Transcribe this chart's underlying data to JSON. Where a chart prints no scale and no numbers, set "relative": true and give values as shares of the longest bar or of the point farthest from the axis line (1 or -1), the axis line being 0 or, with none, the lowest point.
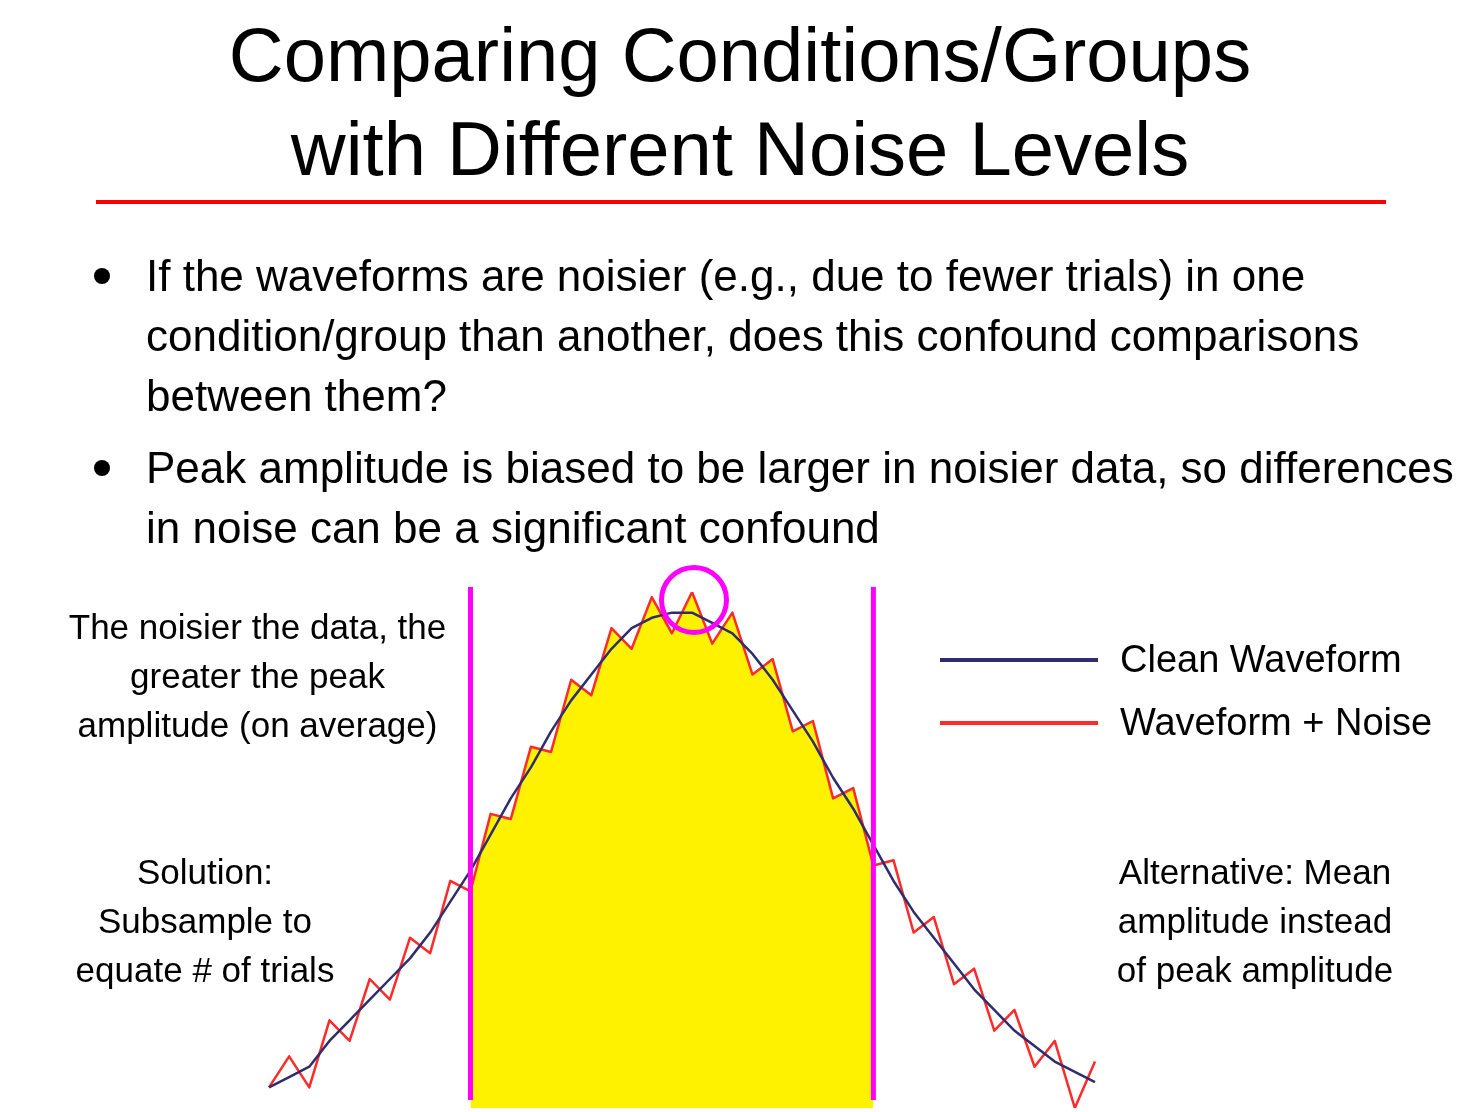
{
  "chart_data": {
    "type": "line",
    "relative": true,
    "title": "Comparing Conditions/Groups with Different Noise Levels",
    "annotations": [
      "If the waveforms are noisier (e.g., due to fewer trials) in one condition/group than another, does this confound comparisons between them?",
      "Peak amplitude is biased to be larger in noisier data, so differences in noise can be a significant confound",
      "The noisier the data, the greater the peak amplitude (on average)",
      "Solution: Subsample to equate # of trials",
      "Alternative: Mean amplitude instead of peak amplitude"
    ],
    "categories": [
      null,
      null,
      null,
      null,
      null,
      null,
      null,
      null,
      null,
      null,
      null,
      null,
      null,
      null,
      null,
      null,
      null,
      null,
      null,
      null,
      null,
      null,
      null,
      null,
      null,
      null,
      null,
      null,
      null,
      null,
      null,
      null,
      null,
      null,
      null,
      null,
      null,
      null,
      null,
      null,
      null,
      null
    ],
    "series": [
      {
        "name": "Clean Waveform",
        "color": "#2e2e6e",
        "values": [
          0.04,
          0.06,
          0.08,
          0.13,
          0.17,
          0.21,
          0.25,
          0.29,
          0.34,
          0.4,
          0.46,
          0.53,
          0.6,
          0.66,
          0.73,
          0.79,
          0.84,
          0.89,
          0.93,
          0.95,
          0.96,
          0.96,
          0.94,
          0.92,
          0.88,
          0.83,
          0.77,
          0.71,
          0.64,
          0.58,
          0.51,
          0.44,
          0.38,
          0.33,
          0.28,
          0.23,
          0.19,
          0.15,
          0.12,
          0.09,
          0.07,
          0.05
        ]
      },
      {
        "name": "Waveform + Noise",
        "color": "#ff2a2a",
        "values": [
          0.04,
          0.1,
          0.04,
          0.17,
          0.13,
          0.25,
          0.21,
          0.33,
          0.3,
          0.44,
          0.42,
          0.57,
          0.56,
          0.7,
          0.69,
          0.83,
          0.8,
          0.93,
          0.89,
          0.99,
          0.92,
          1.0,
          0.9,
          0.96,
          0.84,
          0.87,
          0.73,
          0.75,
          0.6,
          0.62,
          0.47,
          0.48,
          0.34,
          0.37,
          0.24,
          0.27,
          0.15,
          0.19,
          0.08,
          0.13,
          0,
          0.09
        ]
      },
      {
        "type": "area",
        "color": "#fff200",
        "values": [
          null,
          null,
          null,
          null,
          null,
          null,
          null,
          null,
          null,
          null,
          0.42,
          0.57,
          0.56,
          0.7,
          0.69,
          0.83,
          0.8,
          0.93,
          0.89,
          0.99,
          0.92,
          1.0,
          0.9,
          0.96,
          0.84,
          0.87,
          0.73,
          0.75,
          0.6,
          0.62,
          0.47,
          null,
          null,
          null,
          null,
          null,
          null,
          null,
          null,
          null,
          null,
          null
        ]
      }
    ],
    "legend": "top right",
    "marker": "none",
    "line_style": "solid"
  }
}
